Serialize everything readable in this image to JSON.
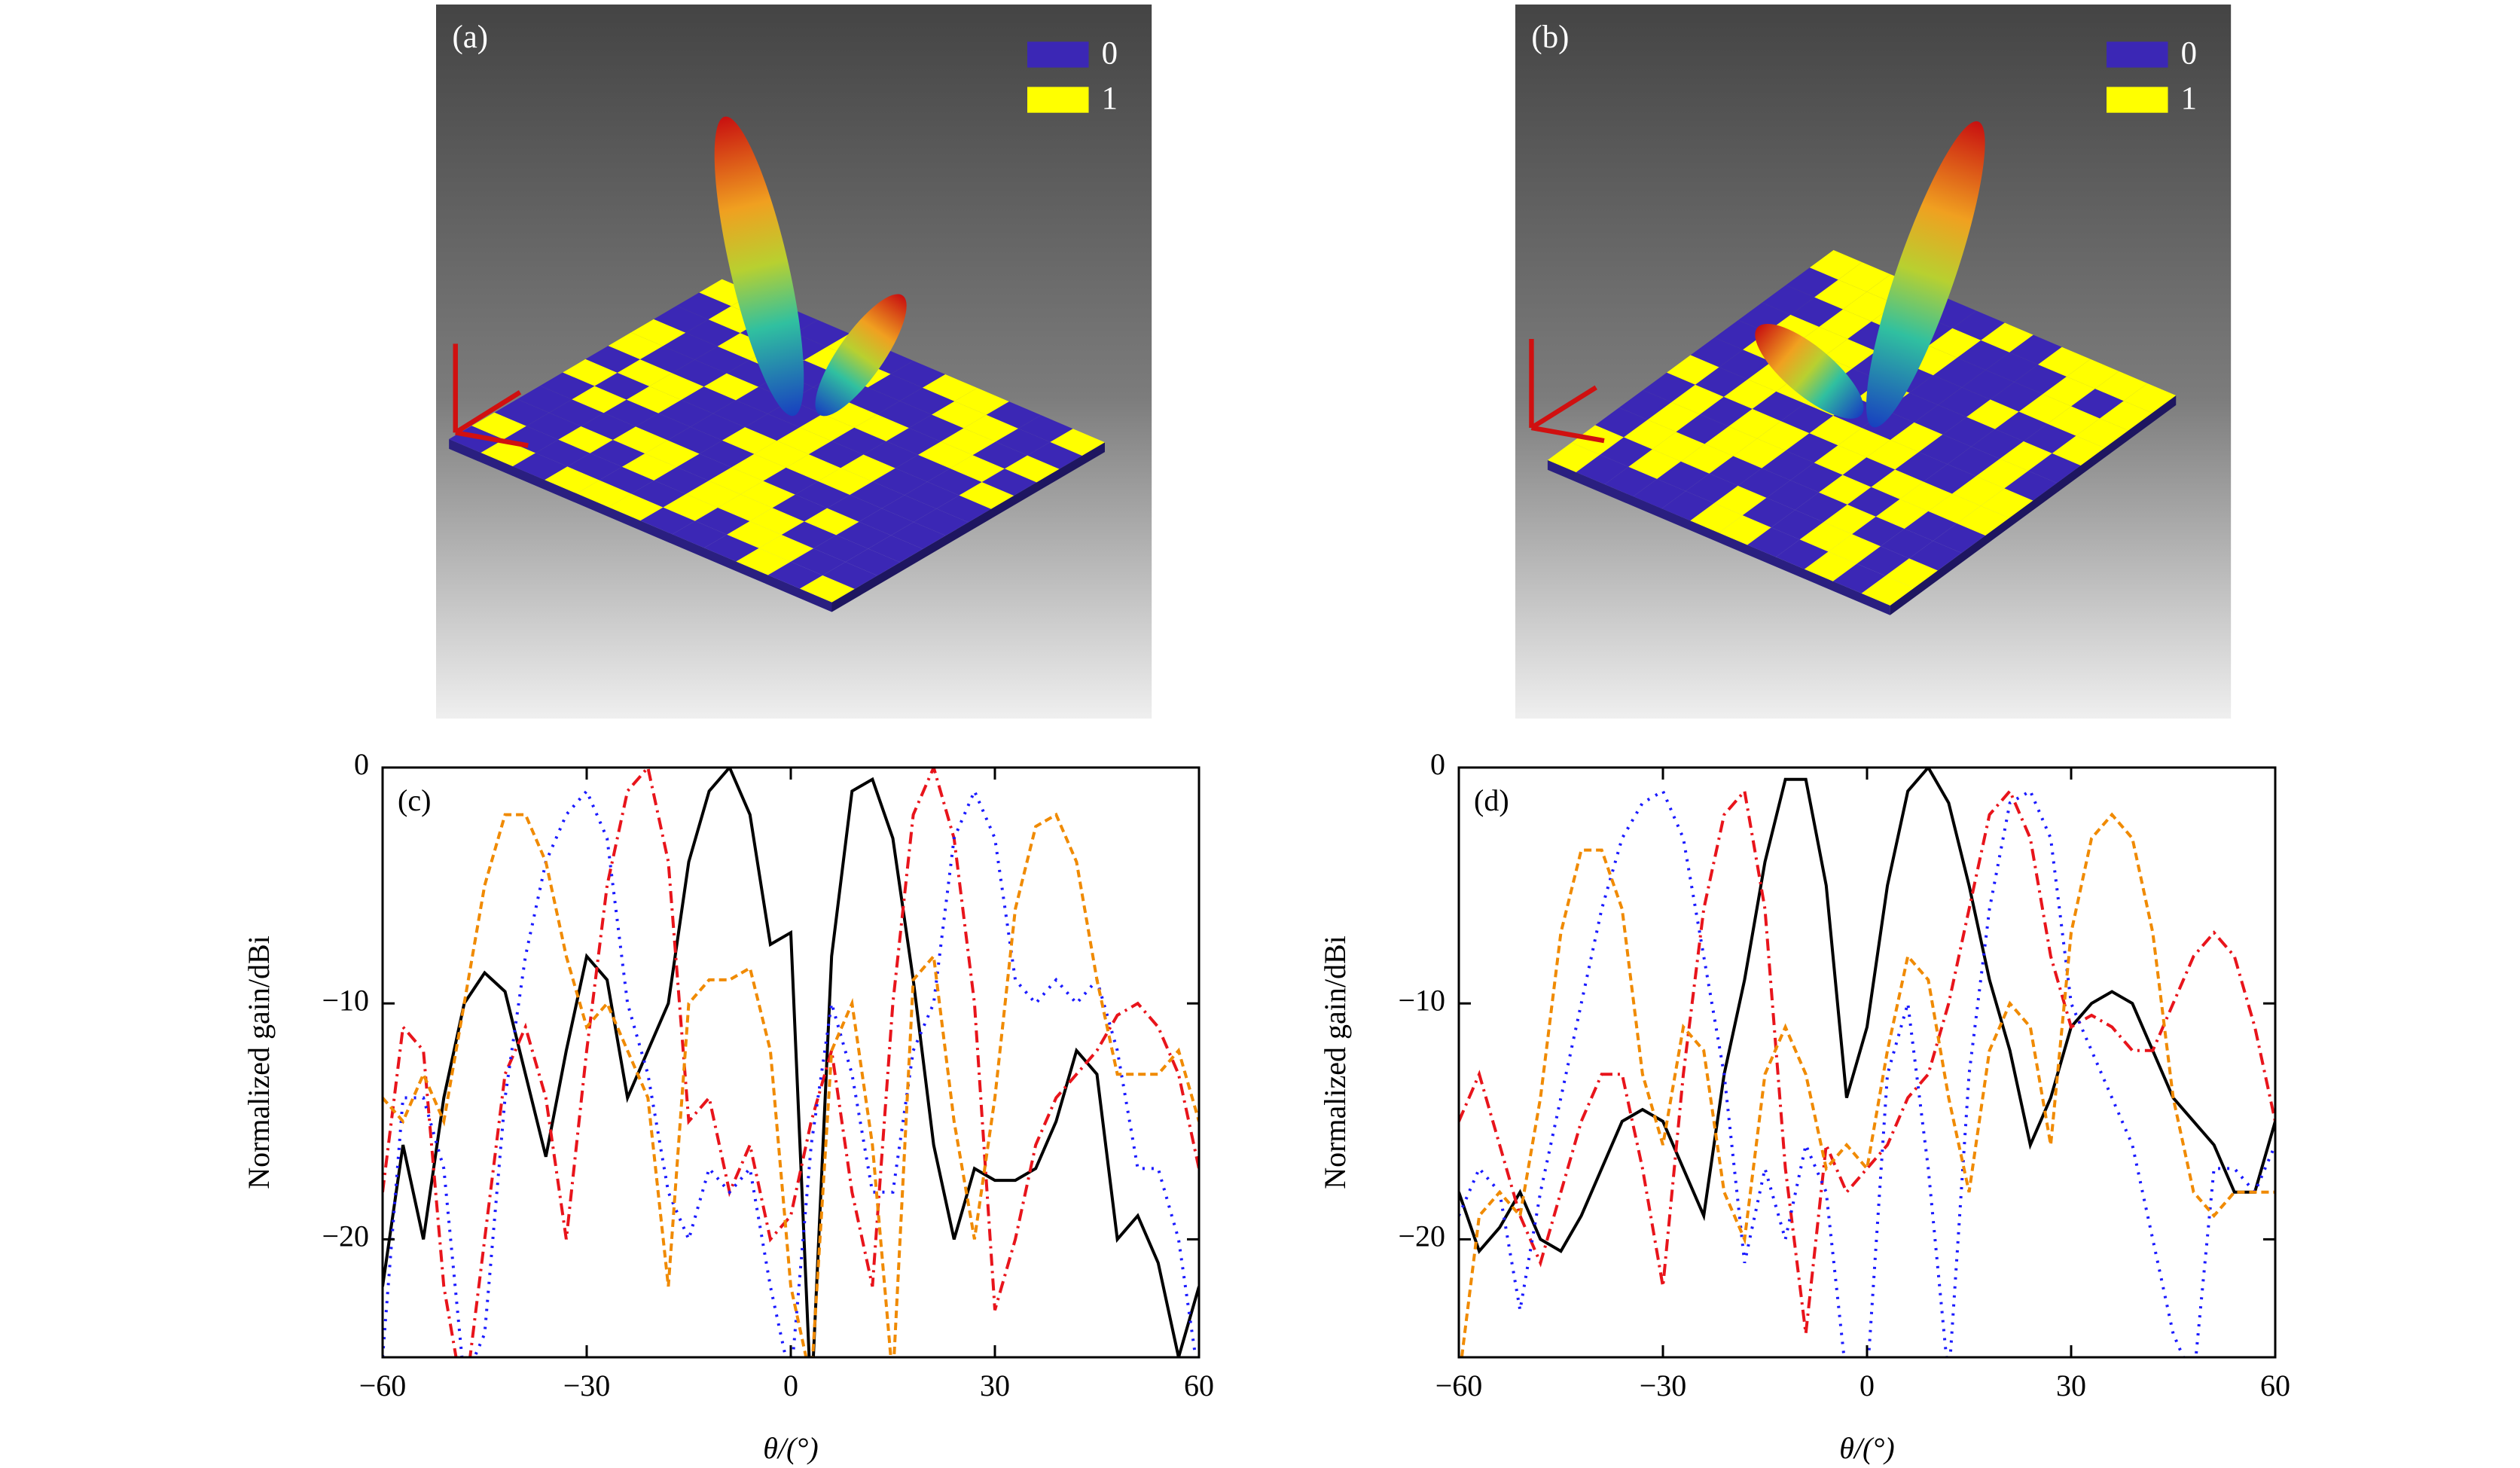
{
  "images": [
    {
      "label": "(a)",
      "legend": [
        "0",
        "1"
      ]
    },
    {
      "label": "(b)",
      "legend": [
        "0",
        "1"
      ]
    }
  ],
  "chart_data": [
    {
      "type": "line",
      "label": "(c)",
      "xlabel": "θ/(°)",
      "ylabel": "Normalized gain/dBi",
      "x": [
        -60,
        -57,
        -54,
        -51,
        -48,
        -45,
        -42,
        -39,
        -36,
        -33,
        -30,
        -27,
        -24,
        -21,
        -18,
        -15,
        -12,
        -9,
        -6,
        -3,
        0,
        3,
        6,
        9,
        12,
        15,
        18,
        21,
        24,
        27,
        30,
        33,
        36,
        39,
        42,
        45,
        48,
        51,
        54,
        57,
        60
      ],
      "xlim": [
        -60,
        60
      ],
      "ylim": [
        -25,
        0
      ],
      "xticks": [
        {
          "value": -60,
          "label": "−60"
        },
        {
          "value": -30,
          "label": "−30"
        },
        0,
        30,
        60
      ],
      "yticks": [
        0,
        {
          "value": -10,
          "label": "−10"
        },
        {
          "value": -20,
          "label": "−20"
        }
      ],
      "series": [
        {
          "color": "#000000",
          "linestyle": "solid",
          "values": [
            -22,
            -16,
            -20,
            -14,
            -10,
            -8.7,
            -9.5,
            -13,
            -16.5,
            -12,
            -8,
            -9,
            -14,
            -12,
            -10,
            -4,
            -1,
            0,
            -2,
            -7.5,
            -7,
            -27,
            -8,
            -1,
            -0.5,
            -3,
            -9,
            -16,
            -20,
            -17,
            -17.5,
            -17.5,
            -17,
            -15,
            -12,
            -13,
            -20,
            -19,
            -21,
            -25,
            -22
          ]
        },
        {
          "color": "#e8141b",
          "linestyle": "dashdot",
          "values": [
            -18,
            -11,
            -12,
            -22,
            -27,
            -20,
            -13,
            -11,
            -14,
            -20,
            -12,
            -5,
            -1,
            0,
            -4,
            -15,
            -14,
            -18,
            -16,
            -20,
            -19,
            -15,
            -12,
            -18,
            -22,
            -10,
            -2,
            0,
            -3,
            -10,
            -23,
            -20,
            -16,
            -14,
            -13,
            -12,
            -10.5,
            -10,
            -11,
            -13,
            -17
          ]
        },
        {
          "color": "#1a1aff",
          "linestyle": "dotted",
          "values": [
            -25,
            -14,
            -14,
            -17,
            -26,
            -24,
            -14,
            -8,
            -4,
            -2,
            -1,
            -3,
            -10,
            -13,
            -18,
            -20,
            -17,
            -18,
            -17,
            -22,
            -26,
            -16,
            -10,
            -13,
            -18,
            -18,
            -12,
            -10,
            -3,
            -1,
            -3,
            -9,
            -10,
            -9,
            -10,
            -9,
            -12,
            -17,
            -17,
            -20,
            -26
          ]
        },
        {
          "color": "#f08a00",
          "linestyle": "dashed",
          "values": [
            -14,
            -15,
            -13,
            -15,
            -10,
            -5,
            -2,
            -2,
            -4,
            -8,
            -11,
            -10,
            -12,
            -14,
            -22,
            -10,
            -9,
            -9,
            -8.5,
            -12,
            -22,
            -26,
            -12,
            -10,
            -16,
            -26,
            -9,
            -8,
            -15,
            -20,
            -14,
            -6,
            -2.5,
            -2,
            -4,
            -9,
            -13,
            -13,
            -13,
            -12,
            -15
          ]
        }
      ]
    },
    {
      "type": "line",
      "label": "(d)",
      "xlabel": "θ/(°)",
      "ylabel": "Normalized gain/dBi",
      "x": [
        -60,
        -57,
        -54,
        -51,
        -48,
        -45,
        -42,
        -39,
        -36,
        -33,
        -30,
        -27,
        -24,
        -21,
        -18,
        -15,
        -12,
        -9,
        -6,
        -3,
        0,
        3,
        6,
        9,
        12,
        15,
        18,
        21,
        24,
        27,
        30,
        33,
        36,
        39,
        42,
        45,
        48,
        51,
        54,
        57,
        60
      ],
      "xlim": [
        -60,
        60
      ],
      "ylim": [
        -25,
        0
      ],
      "xticks": [
        {
          "value": -60,
          "label": "−60"
        },
        {
          "value": -30,
          "label": "−30"
        },
        0,
        30,
        60
      ],
      "yticks": [
        0,
        {
          "value": -10,
          "label": "−10"
        },
        {
          "value": -20,
          "label": "−20"
        }
      ],
      "series": [
        {
          "color": "#000000",
          "linestyle": "solid",
          "values": [
            -18,
            -20.5,
            -19.5,
            -18,
            -20,
            -20.5,
            -19,
            -17,
            -15,
            -14.5,
            -15,
            -17,
            -19,
            -13,
            -9,
            -4,
            -0.5,
            -0.5,
            -5,
            -14,
            -11,
            -5,
            -1,
            0,
            -1.5,
            -5,
            -9,
            -12,
            -16,
            -14,
            -11,
            -10,
            -9.5,
            -10,
            -12,
            -14,
            -15,
            -16,
            -18,
            -18,
            -15
          ]
        },
        {
          "color": "#e8141b",
          "linestyle": "dashdot",
          "values": [
            -15,
            -13,
            -16,
            -19,
            -21,
            -18,
            -15,
            -13,
            -13,
            -17,
            -22,
            -13,
            -6,
            -2,
            -1,
            -6,
            -17,
            -24,
            -16,
            -18,
            -17,
            -16,
            -14,
            -13,
            -10,
            -6,
            -2,
            -1,
            -3,
            -8,
            -11,
            -10.5,
            -11,
            -12,
            -12,
            -10,
            -8,
            -7,
            -8,
            -11,
            -15
          ]
        },
        {
          "color": "#1a1aff",
          "linestyle": "dotted",
          "values": [
            -19,
            -17,
            -18,
            -23,
            -18,
            -14,
            -10,
            -6,
            -3,
            -1.5,
            -1,
            -3,
            -8,
            -13,
            -21,
            -17,
            -20,
            -16,
            -18,
            -26,
            -26,
            -13,
            -10,
            -17,
            -26,
            -13,
            -6,
            -1.5,
            -1,
            -3,
            -10,
            -12,
            -14,
            -16,
            -20,
            -24,
            -26,
            -17,
            -17,
            -18,
            -16
          ]
        },
        {
          "color": "#f08a00",
          "linestyle": "dashed",
          "values": [
            -26,
            -19,
            -18,
            -19,
            -14,
            -7,
            -3.5,
            -3.5,
            -6,
            -13,
            -16,
            -11,
            -12,
            -18,
            -20,
            -13,
            -11,
            -13,
            -17,
            -16,
            -17,
            -12,
            -8,
            -9,
            -14,
            -18,
            -12,
            -10,
            -11,
            -16,
            -7,
            -3,
            -2,
            -3,
            -7,
            -14,
            -18,
            -19,
            -18,
            -18,
            -18
          ]
        }
      ]
    }
  ]
}
